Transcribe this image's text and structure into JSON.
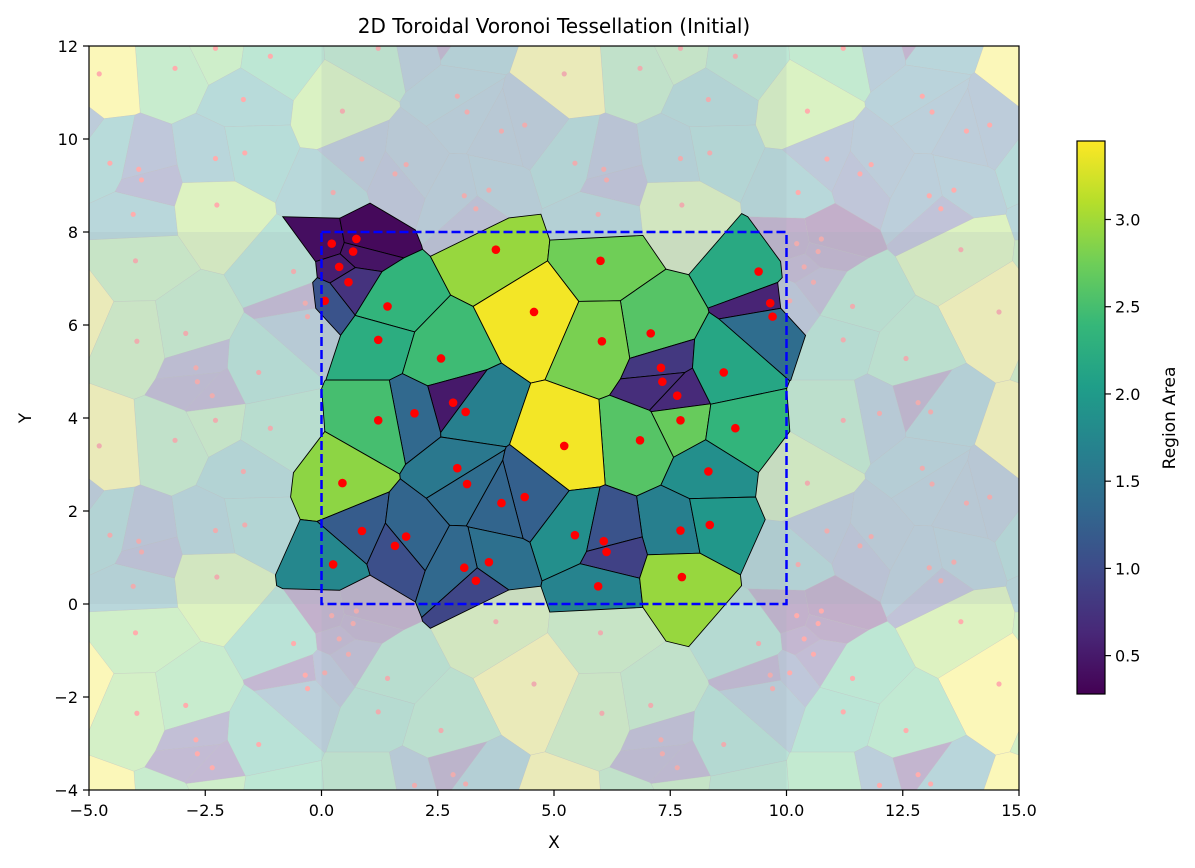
{
  "chart_data": {
    "type": "voronoi",
    "title": "2D Toroidal Voronoi Tessellation (Initial)",
    "xlabel": "X",
    "ylabel": "Y",
    "xlim": [
      -5,
      15
    ],
    "ylim": [
      -4,
      12
    ],
    "x_ticks": [
      -5.0,
      -2.5,
      0.0,
      2.5,
      5.0,
      7.5,
      10.0,
      12.5,
      15.0
    ],
    "x_tick_labels": [
      "−5.0",
      "−2.5",
      "0.0",
      "2.5",
      "5.0",
      "7.5",
      "10.0",
      "12.5",
      "15.0"
    ],
    "y_ticks": [
      -4,
      -2,
      0,
      2,
      4,
      6,
      8,
      10,
      12
    ],
    "y_tick_labels": [
      "−4",
      "−2",
      "0",
      "2",
      "4",
      "6",
      "8",
      "10",
      "12"
    ],
    "domain": {
      "x": [
        0,
        10
      ],
      "y": [
        0,
        8
      ]
    },
    "colorbar": {
      "label": "Region Area",
      "min": 0.28,
      "max": 3.45,
      "ticks": [
        0.5,
        1.0,
        1.5,
        2.0,
        2.5,
        3.0
      ],
      "tick_labels": [
        "0.5",
        "1.0",
        "1.5",
        "2.0",
        "2.5",
        "3.0"
      ],
      "colormap": "viridis"
    },
    "colors": {
      "points": "#ff0000",
      "domain_border": "#0000ff",
      "ghost_overlay": "#ffffff"
    },
    "points": [
      {
        "x": 0.22,
        "y": 7.75
      },
      {
        "x": 0.75,
        "y": 7.85
      },
      {
        "x": 0.38,
        "y": 7.25
      },
      {
        "x": 0.68,
        "y": 7.58
      },
      {
        "x": 0.58,
        "y": 6.92
      },
      {
        "x": 0.07,
        "y": 6.52
      },
      {
        "x": 1.42,
        "y": 6.4
      },
      {
        "x": 3.75,
        "y": 7.62
      },
      {
        "x": 6.0,
        "y": 7.38
      },
      {
        "x": 9.4,
        "y": 7.15
      },
      {
        "x": 9.65,
        "y": 6.47
      },
      {
        "x": 9.7,
        "y": 6.18
      },
      {
        "x": 4.57,
        "y": 6.28
      },
      {
        "x": 7.08,
        "y": 5.82
      },
      {
        "x": 6.03,
        "y": 5.65
      },
      {
        "x": 1.22,
        "y": 5.68
      },
      {
        "x": 2.57,
        "y": 5.28
      },
      {
        "x": 7.3,
        "y": 5.08
      },
      {
        "x": 8.65,
        "y": 4.98
      },
      {
        "x": 7.33,
        "y": 4.78
      },
      {
        "x": 7.65,
        "y": 4.48
      },
      {
        "x": 2.83,
        "y": 4.33
      },
      {
        "x": 3.1,
        "y": 4.13
      },
      {
        "x": 2.0,
        "y": 4.1
      },
      {
        "x": 1.22,
        "y": 3.95
      },
      {
        "x": 7.72,
        "y": 3.95
      },
      {
        "x": 8.9,
        "y": 3.78
      },
      {
        "x": 6.85,
        "y": 3.52
      },
      {
        "x": 5.22,
        "y": 3.4
      },
      {
        "x": 2.92,
        "y": 2.92
      },
      {
        "x": 8.32,
        "y": 2.85
      },
      {
        "x": 0.45,
        "y": 2.6
      },
      {
        "x": 3.13,
        "y": 2.58
      },
      {
        "x": 4.37,
        "y": 2.3
      },
      {
        "x": 3.87,
        "y": 2.17
      },
      {
        "x": 7.72,
        "y": 1.58
      },
      {
        "x": 8.35,
        "y": 1.7
      },
      {
        "x": 0.87,
        "y": 1.57
      },
      {
        "x": 1.82,
        "y": 1.45
      },
      {
        "x": 5.45,
        "y": 1.48
      },
      {
        "x": 6.07,
        "y": 1.35
      },
      {
        "x": 1.58,
        "y": 1.25
      },
      {
        "x": 6.13,
        "y": 1.12
      },
      {
        "x": 3.6,
        "y": 0.9
      },
      {
        "x": 0.25,
        "y": 0.85
      },
      {
        "x": 3.07,
        "y": 0.78
      },
      {
        "x": 5.95,
        "y": 0.38
      },
      {
        "x": 7.75,
        "y": 0.58
      },
      {
        "x": 3.32,
        "y": 0.5
      }
    ],
    "region_areas": [
      0.4,
      0.35,
      0.55,
      0.45,
      0.75,
      1.1,
      2.35,
      2.95,
      2.75,
      2.2,
      0.6,
      1.4,
      3.4,
      2.6,
      2.8,
      2.25,
      2.45,
      0.8,
      2.15,
      0.7,
      0.65,
      0.5,
      1.65,
      1.35,
      2.5,
      2.7,
      2.35,
      2.6,
      3.4,
      1.55,
      1.85,
      2.9,
      1.4,
      1.25,
      1.3,
      1.65,
      1.95,
      1.2,
      1.3,
      1.85,
      1.1,
      1.05,
      0.9,
      1.45,
      1.75,
      1.35,
      1.7,
      2.95,
      0.95
    ]
  }
}
